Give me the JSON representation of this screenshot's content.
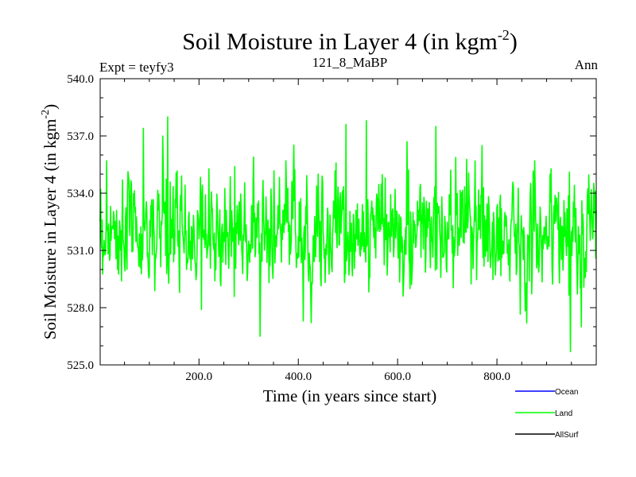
{
  "chart_data": {
    "type": "line",
    "title": "Soil Moisture in Layer 4 (in kgm",
    "title_exp": "-2",
    "title_close": ")",
    "left_label": "Expt = teyfy3",
    "center_label": "121_8_MaBP",
    "right_label": "Ann",
    "xlabel": "Time (in years since start)",
    "ylabel": "Soil Moisture in Layer 4 (in kgm",
    "ylabel_exp": "-2",
    "ylabel_close": ")",
    "xlim": [
      1,
      1000
    ],
    "ylim": [
      525.0,
      540.0
    ],
    "x_ticks": [
      {
        "value": 200,
        "label": "200.0"
      },
      {
        "value": 400,
        "label": "400.0"
      },
      {
        "value": 600,
        "label": "600.0"
      },
      {
        "value": 800,
        "label": "800.0"
      }
    ],
    "y_ticks": [
      {
        "value": 525,
        "label": "525.0"
      },
      {
        "value": 528,
        "label": "528.0"
      },
      {
        "value": 531,
        "label": "531.0"
      },
      {
        "value": 534,
        "label": "534.0"
      },
      {
        "value": 537,
        "label": "537.0"
      },
      {
        "value": 540,
        "label": "540.0"
      }
    ],
    "legend": [
      {
        "name": "Ocean",
        "color": "#0000ff"
      },
      {
        "name": "Land",
        "color": "#00ff00"
      },
      {
        "name": "AllSurf",
        "color": "#000000"
      }
    ],
    "series": [
      {
        "name": "Land",
        "color": "#00ff00",
        "x_start": 1,
        "x_step": 1,
        "n_points": 1000,
        "mean": 532.0,
        "std": 1.35,
        "key_points": [
          {
            "x": 1,
            "y": 532.5
          },
          {
            "x": 14,
            "y": 535.7
          },
          {
            "x": 88,
            "y": 537.4
          },
          {
            "x": 100,
            "y": 529.7
          },
          {
            "x": 137,
            "y": 538.0
          },
          {
            "x": 161,
            "y": 528.8
          },
          {
            "x": 205,
            "y": 527.9
          },
          {
            "x": 272,
            "y": 535.4
          },
          {
            "x": 375,
            "y": 535.7
          },
          {
            "x": 410,
            "y": 527.3
          },
          {
            "x": 440,
            "y": 535.0
          },
          {
            "x": 496,
            "y": 537.6
          },
          {
            "x": 537,
            "y": 537.8
          },
          {
            "x": 575,
            "y": 534.8
          },
          {
            "x": 625,
            "y": 529.0
          },
          {
            "x": 677,
            "y": 537.5
          },
          {
            "x": 770,
            "y": 536.5
          },
          {
            "x": 860,
            "y": 527.2
          },
          {
            "x": 948,
            "y": 525.7
          },
          {
            "x": 970,
            "y": 527.0
          },
          {
            "x": 1000,
            "y": 533.1
          }
        ]
      }
    ]
  }
}
